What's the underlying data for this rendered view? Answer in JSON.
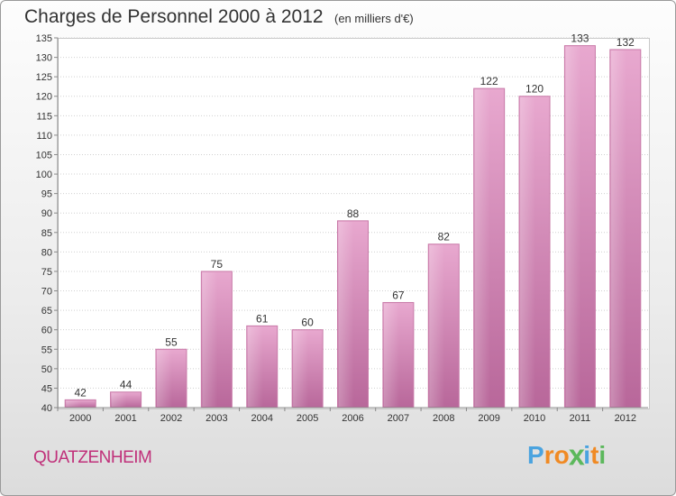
{
  "title": "Charges de Personnel 2000 à 2012",
  "subtitle": "(en milliers d'€)",
  "town": "QUATZENHEIM",
  "logo": {
    "letters": [
      "P",
      "r",
      "o",
      "x",
      "i",
      "t",
      "i"
    ],
    "colors": [
      "#4aa3df",
      "#f08a24",
      "#f08a24",
      "#5cb85c",
      "#4aa3df",
      "#f08a24",
      "#5cb85c"
    ]
  },
  "chart_data": {
    "type": "bar",
    "categories": [
      "2000",
      "2001",
      "2002",
      "2003",
      "2004",
      "2005",
      "2006",
      "2007",
      "2008",
      "2009",
      "2010",
      "2011",
      "2012"
    ],
    "values": [
      42,
      44,
      55,
      75,
      61,
      60,
      88,
      67,
      82,
      122,
      120,
      133,
      132
    ],
    "ylim": [
      40,
      135
    ],
    "yticks": [
      40,
      45,
      50,
      55,
      60,
      65,
      70,
      75,
      80,
      85,
      90,
      95,
      100,
      105,
      110,
      115,
      120,
      125,
      130,
      135
    ],
    "grid": true,
    "bar_color": "#d98db8",
    "title": "Charges de Personnel 2000 à 2012",
    "xlabel": "",
    "ylabel": ""
  }
}
